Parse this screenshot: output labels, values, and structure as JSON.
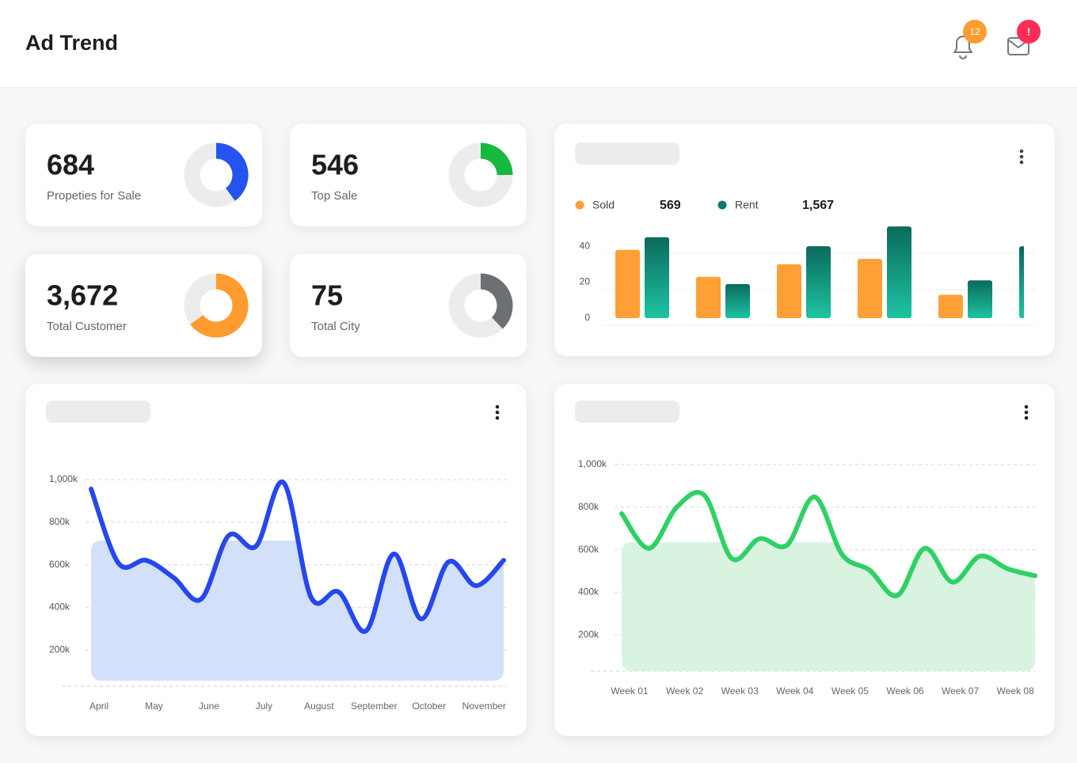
{
  "header": {
    "title": "Ad Trend",
    "notification_count": "12",
    "message_badge": "!"
  },
  "stats": [
    {
      "value": "684",
      "label": "Propeties for Sale",
      "percent": 40,
      "color": "#2453f0"
    },
    {
      "value": "546",
      "label": "Top Sale",
      "percent": 25,
      "color": "#17b83e"
    },
    {
      "value": "3,672",
      "label": "Total Customer",
      "percent": 65,
      "color": "#ff9b2f"
    },
    {
      "value": "75",
      "label": "Total City",
      "percent": 38,
      "color": "#6c7074"
    }
  ],
  "chart_data": [
    {
      "type": "bar",
      "categories": [
        null,
        null,
        null,
        null,
        null,
        null
      ],
      "series": [
        {
          "name": "Sold",
          "total": "569",
          "color": "#ff9f35",
          "values": [
            38,
            23,
            30,
            33,
            13,
            null
          ]
        },
        {
          "name": "Rent",
          "total": "1,567",
          "color": "#0f7a68",
          "values": [
            45,
            19,
            40,
            51,
            21,
            40
          ]
        }
      ],
      "ylim": [
        0,
        55
      ],
      "yticks": [
        0,
        20,
        40
      ],
      "grid": true
    },
    {
      "type": "area",
      "categories": [
        "April",
        null,
        "May",
        null,
        "June",
        null,
        "July",
        null,
        "August",
        null,
        "September",
        null,
        "October",
        null,
        "November",
        null
      ],
      "series": [
        {
          "color": "#2548ee",
          "fill": "#d3e0fa",
          "values": [
            956,
            607,
            621,
            540,
            439,
            737,
            688,
            986,
            447,
            473,
            290,
            651,
            346,
            614,
            502,
            621
          ]
        }
      ],
      "ylim": [
        0,
        1000
      ],
      "yticks": [
        {
          "value": 200,
          "label": "200k"
        },
        {
          "value": 400,
          "label": "400k"
        },
        {
          "value": 600,
          "label": "600k"
        },
        {
          "value": 800,
          "label": "800k"
        },
        {
          "value": 1000,
          "label": "1,000k"
        }
      ],
      "grid": true
    },
    {
      "type": "area",
      "categories": [
        "Week 01",
        null,
        "Week 02",
        null,
        "Week 03",
        null,
        "Week 04",
        null,
        "Week 05",
        null,
        "Week 06",
        null,
        "Week 07",
        null,
        "Week 08",
        null
      ],
      "series": [
        {
          "color": "#2fd165",
          "fill": "#d8f4e0",
          "values": [
            770,
            607,
            800,
            856,
            559,
            652,
            622,
            848,
            578,
            504,
            385,
            607,
            448,
            570,
            511,
            478
          ]
        }
      ],
      "ylim": [
        0,
        1000
      ],
      "yticks": [
        {
          "value": 200,
          "label": "200k"
        },
        {
          "value": 400,
          "label": "400k"
        },
        {
          "value": 600,
          "label": "600k"
        },
        {
          "value": 800,
          "label": "800k"
        },
        {
          "value": 1000,
          "label": "1,000k"
        }
      ],
      "grid": true
    }
  ]
}
